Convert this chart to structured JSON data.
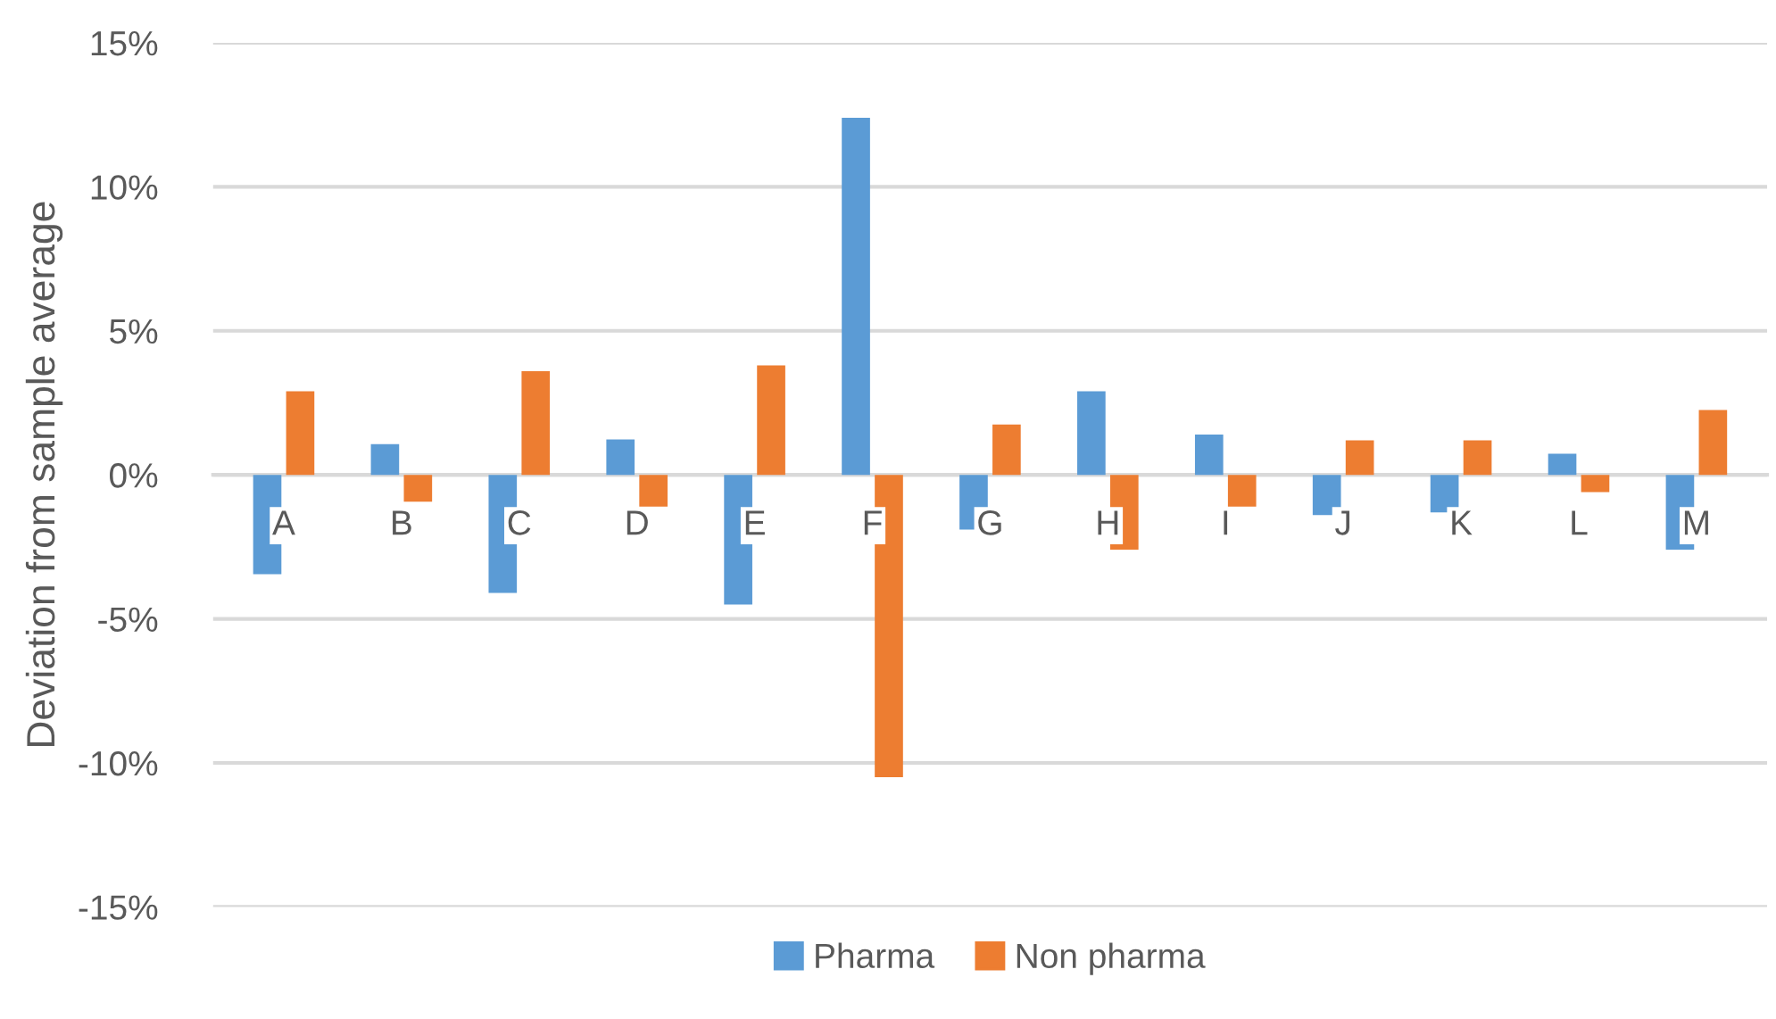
{
  "chart_data": {
    "type": "bar",
    "ylabel": "Deviation from sample average",
    "categories": [
      "A",
      "B",
      "C",
      "D",
      "E",
      "F",
      "G",
      "H",
      "I",
      "J",
      "K",
      "L",
      "M"
    ],
    "series": [
      {
        "name": "Pharma",
        "color": "#5b9bd5",
        "values": [
          -3.45,
          1.07,
          -4.1,
          1.23,
          -4.5,
          12.4,
          -1.9,
          2.9,
          1.4,
          -1.4,
          -1.3,
          0.73,
          -2.6
        ]
      },
      {
        "name": "Non pharma",
        "color": "#ed7d31",
        "values": [
          2.9,
          -0.93,
          3.6,
          -1.1,
          3.8,
          -10.5,
          1.75,
          -2.6,
          -1.1,
          1.2,
          1.2,
          -0.6,
          2.25
        ]
      }
    ],
    "ylim": [
      -15,
      15
    ],
    "yticks": [
      {
        "value": -15,
        "label": "-15%"
      },
      {
        "value": -10,
        "label": "-10%"
      },
      {
        "value": -5,
        "label": "-5%"
      },
      {
        "value": 0,
        "label": "0%"
      },
      {
        "value": 5,
        "label": "5%"
      },
      {
        "value": 10,
        "label": "10%"
      },
      {
        "value": 15,
        "label": "15%"
      }
    ],
    "grid": "y",
    "legend": "bottom"
  }
}
